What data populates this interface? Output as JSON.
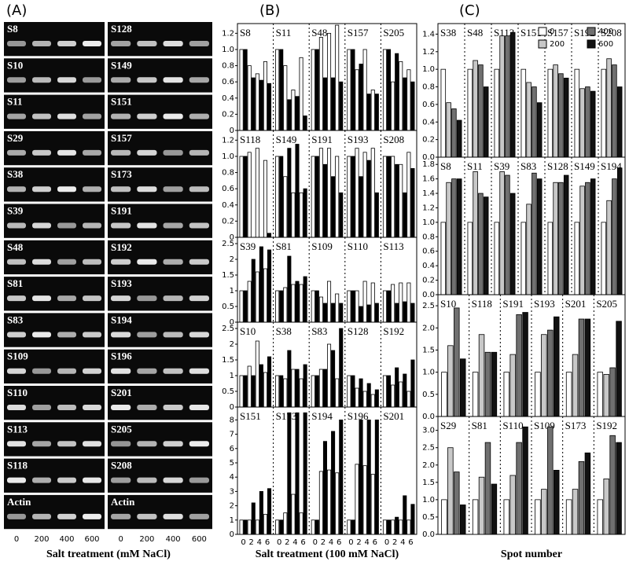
{
  "figure": {
    "panel_labels": [
      "(A)",
      "(B)",
      "(C)"
    ],
    "gel": {
      "left": [
        "S8",
        "S10",
        "S11",
        "S29",
        "S38",
        "S39",
        "S48",
        "S81",
        "S83",
        "S109",
        "S110",
        "S113",
        "S118",
        "Actin"
      ],
      "right": [
        "S128",
        "S149",
        "S151",
        "S157",
        "S173",
        "S191",
        "S192",
        "S193",
        "S194",
        "S196",
        "S201",
        "S205",
        "S208",
        "Actin"
      ],
      "lanes": [
        "0",
        "200",
        "400",
        "600"
      ],
      "xlabel": "Salt treatment (mM NaCl)"
    }
  },
  "chart_data": [
    {
      "type": "bar",
      "groups": [
        "S8",
        "S11",
        "S48",
        "S157",
        "S205"
      ],
      "ylim": [
        0,
        1.32
      ],
      "yticks": [
        0,
        0.2,
        0.4,
        0.6,
        0.8,
        {
          "value": 1,
          "label": "1.0"
        },
        1.2
      ],
      "series": [
        {
          "color": "#ffffff",
          "values": [
            1,
            0.8,
            0.7,
            0.85,
            1,
            0.8,
            0.5,
            0.9,
            1,
            1.15,
            1.2,
            1.3,
            1,
            0.75,
            1.0,
            0.5,
            1,
            0.6,
            0.85,
            0.75
          ]
        },
        {
          "color": "#000000",
          "values": [
            1,
            0.65,
            0.62,
            0.58,
            1,
            0.38,
            0.42,
            0.18,
            1,
            0.65,
            0.65,
            0.6,
            1,
            0.82,
            0.45,
            0.45,
            1,
            0.95,
            0.65,
            0.6
          ]
        }
      ]
    },
    {
      "type": "bar",
      "groups": [
        "S118",
        "S149",
        "S191",
        "S193",
        "S208"
      ],
      "ylim": [
        0,
        1.32
      ],
      "yticks": [
        0,
        0.2,
        0.4,
        0.6,
        0.8,
        {
          "value": 1,
          "label": "1.0"
        },
        1.2
      ],
      "series": [
        {
          "color": "#ffffff",
          "values": [
            1,
            1.05,
            1.1,
            0.95,
            1,
            0.75,
            0.55,
            0.55,
            1,
            1.1,
            1.1,
            1.0,
            1,
            1.1,
            1.05,
            1.1,
            1,
            1.0,
            0.9,
            1.05
          ]
        },
        {
          "color": "#000000",
          "values": [
            1,
            0,
            0,
            0.05,
            1,
            1.1,
            1.15,
            0.6,
            1,
            0.9,
            0.75,
            0.55,
            1,
            0.75,
            0.95,
            0.55,
            1,
            0.9,
            0.55,
            0.85
          ]
        }
      ]
    },
    {
      "type": "bar",
      "groups": [
        "S39",
        "S81",
        "S109",
        "S110",
        "S113"
      ],
      "ylim": [
        0,
        2.7
      ],
      "yticks": [
        0,
        0.5,
        1,
        1.5,
        2,
        2.5
      ],
      "series": [
        {
          "color": "#ffffff",
          "values": [
            1,
            1.3,
            1.6,
            1.7,
            1,
            1.1,
            1.2,
            1.2,
            1,
            0.8,
            1.3,
            0.9,
            1,
            1.0,
            1.3,
            1.25,
            1,
            1.2,
            1.25,
            1.25
          ]
        },
        {
          "color": "#000000",
          "values": [
            1,
            2.0,
            2.4,
            2.3,
            1,
            2.1,
            1.3,
            1.45,
            1,
            0.6,
            0.6,
            0.6,
            1,
            0.5,
            0.55,
            0.6,
            1,
            0.6,
            0.65,
            0.6
          ]
        }
      ]
    },
    {
      "type": "bar",
      "groups": [
        "S10",
        "S38",
        "S83",
        "S128",
        "S192"
      ],
      "ylim": [
        0,
        2.7
      ],
      "yticks": [
        0,
        0.5,
        1,
        1.5,
        2,
        2.5
      ],
      "series": [
        {
          "color": "#ffffff",
          "values": [
            1,
            1.3,
            2.1,
            1.1,
            1,
            0.9,
            1.2,
            0.9,
            1,
            1.2,
            2.0,
            0.9,
            1,
            0.6,
            0.5,
            0.4,
            1,
            0.7,
            0.8,
            0.5
          ]
        },
        {
          "color": "#000000",
          "values": [
            1,
            1.0,
            1.35,
            1.6,
            1,
            1.8,
            1.2,
            1.35,
            1,
            1.2,
            1.8,
            2.5,
            1,
            0.9,
            0.75,
            0.55,
            1,
            1.25,
            1.05,
            1.5
          ]
        }
      ]
    },
    {
      "type": "bar",
      "groups": [
        "S151",
        "S173",
        "S194",
        "S196",
        "S201"
      ],
      "ylim": [
        0,
        8.9
      ],
      "yticks": [
        0,
        1,
        2,
        3,
        4,
        5,
        6,
        7,
        8
      ],
      "slot_labels": [
        "0",
        "2",
        "4",
        "6"
      ],
      "xlabel": "Salt treatment (100 mM NaCl)",
      "series": [
        {
          "color": "#ffffff",
          "values": [
            1,
            1,
            1,
            1.4,
            1,
            1.5,
            2.8,
            1.5,
            1,
            4.4,
            4.5,
            4.3,
            1,
            4.9,
            4.8,
            4.2,
            1,
            1,
            1,
            1
          ]
        },
        {
          "color": "#000000",
          "values": [
            1,
            2.2,
            3.0,
            3.2,
            1,
            8.5,
            8.5,
            8.5,
            1,
            6.5,
            7.2,
            8.0,
            1,
            8.0,
            8.0,
            8.0,
            1,
            1.2,
            2.7,
            2.1
          ]
        }
      ]
    },
    {
      "type": "bar",
      "groups": [
        "S38",
        "S48",
        "S113",
        "S151",
        "S157",
        "S192",
        "S208"
      ],
      "ylim": [
        0,
        1.52
      ],
      "yticks": [
        {
          "value": 0,
          "label": "0.0"
        },
        0.2,
        0.4,
        0.6,
        0.8,
        {
          "value": 1,
          "label": "1.0"
        },
        1.2,
        1.4
      ],
      "series": [
        {
          "name": "0",
          "color": "#ffffff",
          "values": [
            1,
            1,
            1,
            1,
            1,
            1,
            1
          ]
        },
        {
          "name": "200",
          "color": "#c8c8c8",
          "values": [
            0.62,
            1.1,
            1.38,
            0.85,
            1.05,
            0.78,
            1.12
          ]
        },
        {
          "name": "400",
          "color": "#707070",
          "values": [
            0.55,
            1.05,
            1.38,
            0.8,
            0.95,
            0.8,
            1.05
          ]
        },
        {
          "name": "600",
          "color": "#111111",
          "values": [
            0.42,
            0.8,
            1.42,
            0.62,
            0.9,
            0.75,
            0.8
          ]
        }
      ]
    },
    {
      "type": "bar",
      "groups": [
        "S8",
        "S11",
        "S39",
        "S83",
        "S128",
        "S149",
        "S194"
      ],
      "ylim": [
        0,
        1.9
      ],
      "yticks": [
        {
          "value": 0,
          "label": "0.0"
        },
        0.2,
        0.4,
        0.6,
        0.8,
        {
          "value": 1,
          "label": "1.0"
        },
        1.2,
        1.4,
        1.6,
        1.8
      ],
      "series": [
        {
          "color": "#ffffff",
          "values": [
            1,
            1,
            1,
            1,
            1,
            1,
            1
          ]
        },
        {
          "color": "#c8c8c8",
          "values": [
            1.55,
            1.7,
            1.7,
            1.25,
            1.55,
            1.5,
            1.3
          ]
        },
        {
          "color": "#707070",
          "values": [
            1.6,
            1.4,
            1.65,
            1.68,
            1.55,
            1.55,
            1.6
          ]
        },
        {
          "color": "#111111",
          "values": [
            1.6,
            1.35,
            1.4,
            1.6,
            1.65,
            1.6,
            1.75
          ]
        }
      ]
    },
    {
      "type": "bar",
      "groups": [
        "S10",
        "S118",
        "S191",
        "S193",
        "S201",
        "S205"
      ],
      "ylim": [
        0,
        2.75
      ],
      "yticks": [
        {
          "value": 0,
          "label": "0.0"
        },
        0.5,
        {
          "value": 1,
          "label": "1.0"
        },
        1.5,
        {
          "value": 2,
          "label": "2.0"
        },
        2.5
      ],
      "series": [
        {
          "color": "#ffffff",
          "values": [
            1,
            1,
            1,
            1,
            1,
            1
          ]
        },
        {
          "color": "#c8c8c8",
          "values": [
            1.6,
            1.85,
            1.4,
            1.85,
            1.4,
            0.95
          ]
        },
        {
          "color": "#707070",
          "values": [
            2.45,
            1.45,
            2.3,
            1.95,
            2.2,
            1.1
          ]
        },
        {
          "color": "#111111",
          "values": [
            1.3,
            1.45,
            2.35,
            2.25,
            2.2,
            2.15
          ]
        }
      ]
    },
    {
      "type": "bar",
      "groups": [
        "S29",
        "S81",
        "S110",
        "S109",
        "S173",
        "S192"
      ],
      "ylim": [
        0,
        3.4
      ],
      "yticks": [
        {
          "value": 0,
          "label": "0.0"
        },
        0.5,
        {
          "value": 1,
          "label": "1.0"
        },
        1.5,
        {
          "value": 2,
          "label": "2.0"
        },
        2.5,
        {
          "value": 3,
          "label": "3.0"
        }
      ],
      "xlabel": "Spot number",
      "series": [
        {
          "color": "#ffffff",
          "values": [
            1,
            1,
            1,
            1,
            1,
            1
          ]
        },
        {
          "color": "#c8c8c8",
          "values": [
            2.5,
            1.65,
            1.7,
            1.3,
            1.3,
            1.6
          ]
        },
        {
          "color": "#707070",
          "values": [
            1.8,
            2.65,
            2.65,
            3.1,
            2.1,
            2.85
          ]
        },
        {
          "color": "#111111",
          "values": [
            0.85,
            1.45,
            3.1,
            1.85,
            2.35,
            2.65
          ]
        }
      ]
    }
  ]
}
